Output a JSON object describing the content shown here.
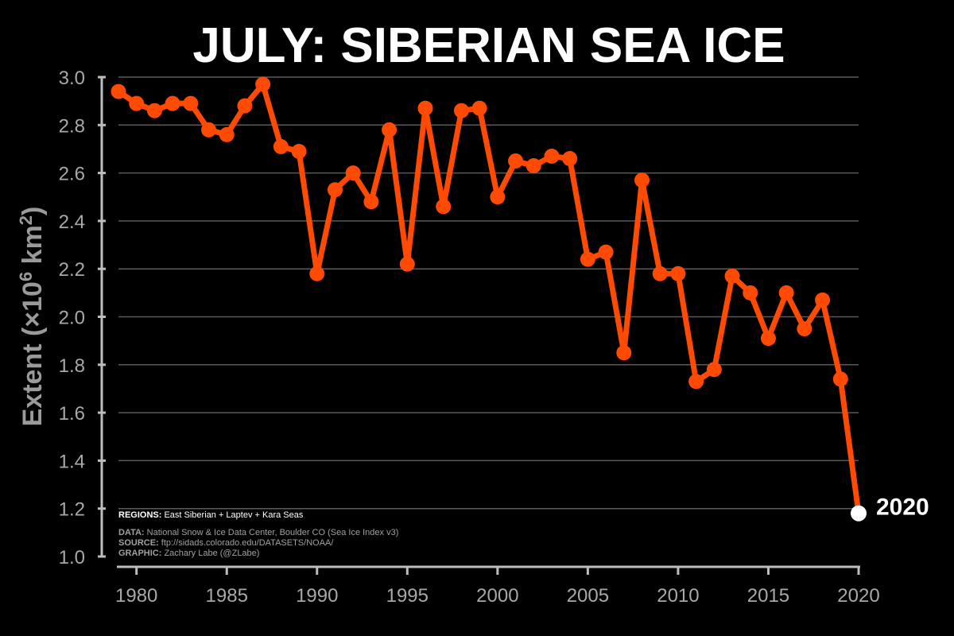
{
  "chart_data": {
    "type": "line",
    "title": "JULY: SIBERIAN SEA ICE",
    "ylabel": "Extent (×10",
    "ylabel_sup1": "6",
    "ylabel_mid": " km",
    "ylabel_sup2": "2",
    "ylabel_end": ")",
    "xlim": [
      1979,
      2020
    ],
    "ylim": [
      1.0,
      3.0
    ],
    "yticks": [
      "1.0",
      "1.2",
      "1.4",
      "1.6",
      "1.8",
      "2.0",
      "2.2",
      "2.4",
      "2.6",
      "2.8",
      "3.0"
    ],
    "xticks": [
      "1980",
      "1985",
      "1990",
      "1995",
      "2000",
      "2005",
      "2010",
      "2015",
      "2020"
    ],
    "grid": "horizontal",
    "colors": {
      "line": "#ff4a03",
      "highlight": "#ffffff",
      "background": "#000000"
    },
    "x": [
      1979,
      1980,
      1981,
      1982,
      1983,
      1984,
      1985,
      1986,
      1987,
      1988,
      1989,
      1990,
      1991,
      1992,
      1993,
      1994,
      1995,
      1996,
      1997,
      1998,
      1999,
      2000,
      2001,
      2002,
      2003,
      2004,
      2005,
      2006,
      2007,
      2008,
      2009,
      2010,
      2011,
      2012,
      2013,
      2014,
      2015,
      2016,
      2017,
      2018,
      2019,
      2020
    ],
    "series": [
      {
        "values": [
          2.94,
          2.89,
          2.86,
          2.89,
          2.89,
          2.78,
          2.76,
          2.88,
          2.97,
          2.71,
          2.69,
          2.18,
          2.53,
          2.6,
          2.48,
          2.78,
          2.22,
          2.87,
          2.46,
          2.86,
          2.87,
          2.5,
          2.65,
          2.63,
          2.67,
          2.66,
          2.24,
          2.27,
          1.85,
          2.57,
          2.18,
          2.18,
          1.73,
          1.78,
          2.17,
          2.1,
          1.91,
          2.1,
          1.95,
          2.07,
          1.74,
          1.18
        ]
      }
    ],
    "highlight_label": "2020"
  },
  "notes": {
    "regions_key": "REGIONS:",
    "regions_val": " East Siberian + Laptev + Kara Seas",
    "data_key": "DATA:",
    "data_val": " National Snow & Ice Data Center, Boulder CO (Sea Ice Index v3)",
    "source_key": "SOURCE:",
    "source_val": " ftp://sidads.colorado.edu/DATASETS/NOAA/",
    "graphic_key": "GRAPHIC:",
    "graphic_val": " Zachary Labe (@ZLabe)"
  }
}
